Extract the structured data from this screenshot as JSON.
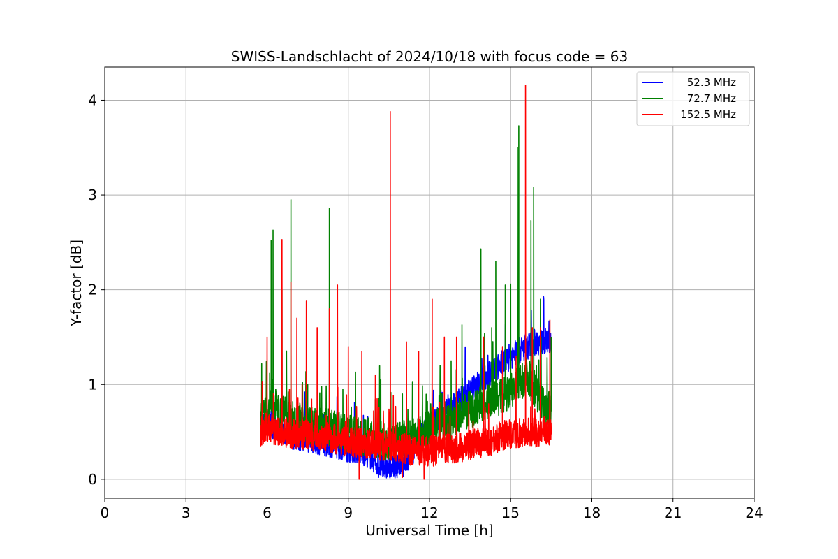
{
  "chart_data": {
    "type": "line",
    "title": "SWISS-Landschlacht of 2024/10/18 with focus code = 63",
    "xlabel": "Universal Time [h]",
    "ylabel": "Y-factor [dB]",
    "xlim": [
      0,
      24
    ],
    "ylim": [
      -0.2,
      4.35
    ],
    "xticks": [
      0,
      3,
      6,
      9,
      12,
      15,
      18,
      21,
      24
    ],
    "yticks": [
      0,
      1,
      2,
      3,
      4
    ],
    "grid": true,
    "legend_position": "top-right",
    "series": [
      {
        "name": "52.3 MHz",
        "color": "#0000ff",
        "x": [
          5.75,
          6.0,
          6.3,
          6.6,
          7.0,
          7.4,
          7.8,
          8.2,
          8.6,
          9.0,
          9.4,
          9.8,
          10.2,
          10.6,
          11.0,
          11.4,
          11.8,
          12.2,
          12.6,
          13.0,
          13.4,
          13.8,
          14.2,
          14.6,
          15.0,
          15.3,
          15.6,
          15.9,
          16.1,
          16.3,
          16.5
        ],
        "y": [
          0.55,
          0.6,
          0.55,
          0.5,
          0.45,
          0.42,
          0.4,
          0.38,
          0.35,
          0.32,
          0.3,
          0.25,
          0.12,
          0.1,
          0.15,
          0.3,
          0.5,
          0.6,
          0.7,
          0.8,
          0.9,
          1.0,
          1.1,
          1.2,
          1.3,
          1.35,
          1.4,
          1.45,
          1.45,
          1.45,
          1.4
        ]
      },
      {
        "name": "72.7 MHz",
        "color": "#008000",
        "x": [
          5.75,
          6.0,
          6.2,
          6.5,
          6.9,
          7.3,
          7.8,
          8.3,
          8.8,
          9.3,
          9.8,
          10.3,
          10.8,
          11.3,
          11.8,
          12.3,
          12.8,
          13.3,
          13.9,
          14.4,
          14.9,
          15.3,
          15.6,
          15.8,
          16.0,
          16.2,
          16.5
        ],
        "y": [
          0.6,
          0.7,
          0.8,
          0.7,
          0.65,
          0.6,
          0.55,
          0.55,
          0.5,
          0.45,
          0.45,
          0.4,
          0.4,
          0.45,
          0.5,
          0.55,
          0.6,
          0.7,
          0.8,
          0.85,
          0.9,
          1.0,
          1.1,
          1.0,
          0.9,
          0.8,
          0.7
        ],
        "spikes": [
          [
            5.8,
            1.22
          ],
          [
            6.15,
            2.52
          ],
          [
            6.22,
            2.63
          ],
          [
            6.55,
            2.0
          ],
          [
            6.88,
            2.95
          ],
          [
            7.5,
            1.0
          ],
          [
            8.3,
            2.86
          ],
          [
            8.8,
            0.95
          ],
          [
            10.2,
            1.05
          ],
          [
            11.0,
            0.9
          ],
          [
            12.8,
            1.25
          ],
          [
            13.2,
            1.63
          ],
          [
            13.9,
            2.43
          ],
          [
            14.3,
            1.6
          ],
          [
            14.45,
            2.3
          ],
          [
            14.8,
            2.05
          ],
          [
            15.0,
            2.06
          ],
          [
            15.25,
            3.5
          ],
          [
            15.3,
            3.73
          ],
          [
            15.75,
            2.73
          ],
          [
            15.85,
            3.08
          ],
          [
            16.1,
            1.9
          ],
          [
            16.5,
            1.5
          ]
        ]
      },
      {
        "name": "152.5 MHz",
        "color": "#ff0000",
        "x": [
          5.75,
          6.0,
          6.3,
          6.6,
          7.0,
          7.4,
          7.8,
          8.2,
          8.6,
          9.0,
          9.4,
          9.8,
          10.2,
          10.6,
          11.0,
          11.4,
          11.8,
          12.2,
          12.6,
          13.0,
          13.4,
          13.8,
          14.2,
          14.6,
          15.0,
          15.4,
          15.8,
          16.2,
          16.5
        ],
        "y": [
          0.5,
          0.55,
          0.5,
          0.5,
          0.48,
          0.47,
          0.45,
          0.45,
          0.42,
          0.4,
          0.38,
          0.37,
          0.35,
          0.35,
          0.33,
          0.3,
          0.3,
          0.3,
          0.32,
          0.33,
          0.35,
          0.38,
          0.4,
          0.45,
          0.48,
          0.5,
          0.5,
          0.5,
          0.52
        ],
        "spikes": [
          [
            6.0,
            1.5
          ],
          [
            6.55,
            2.53
          ],
          [
            6.88,
            2.08
          ],
          [
            7.1,
            1.7
          ],
          [
            7.45,
            1.88
          ],
          [
            7.85,
            1.6
          ],
          [
            8.3,
            1.8
          ],
          [
            8.6,
            2.05
          ],
          [
            9.0,
            1.4
          ],
          [
            9.5,
            1.35
          ],
          [
            10.0,
            1.1
          ],
          [
            10.55,
            3.88
          ],
          [
            11.15,
            1.45
          ],
          [
            11.6,
            1.35
          ],
          [
            12.1,
            1.9
          ],
          [
            12.55,
            1.5
          ],
          [
            13.0,
            1.5
          ],
          [
            14.0,
            1.5
          ],
          [
            14.7,
            1.4
          ],
          [
            15.2,
            1.3
          ],
          [
            15.55,
            4.16
          ],
          [
            15.8,
            1.6
          ],
          [
            16.1,
            1.6
          ],
          [
            16.45,
            1.68
          ]
        ],
        "dips": [
          [
            9.4,
            0.0
          ],
          [
            11.0,
            0.02
          ],
          [
            11.8,
            0.0
          ]
        ]
      }
    ]
  }
}
